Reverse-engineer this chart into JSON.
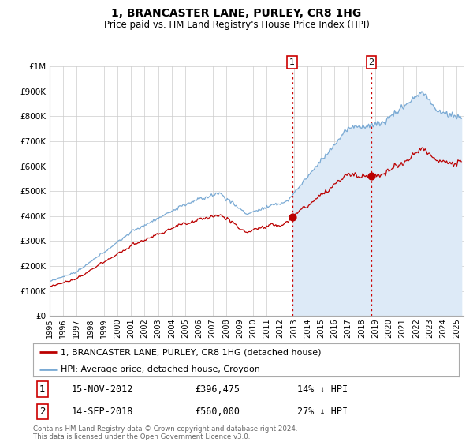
{
  "title": "1, BRANCASTER LANE, PURLEY, CR8 1HG",
  "subtitle": "Price paid vs. HM Land Registry's House Price Index (HPI)",
  "ylim": [
    0,
    1000000
  ],
  "yticks": [
    0,
    100000,
    200000,
    300000,
    400000,
    500000,
    600000,
    700000,
    800000,
    900000,
    1000000
  ],
  "ytick_labels": [
    "£0",
    "£100K",
    "£200K",
    "£300K",
    "£400K",
    "£500K",
    "£600K",
    "£700K",
    "£800K",
    "£900K",
    "£1M"
  ],
  "xlim_start": 1995.0,
  "xlim_end": 2025.5,
  "xtick_years": [
    1995,
    1996,
    1997,
    1998,
    1999,
    2000,
    2001,
    2002,
    2003,
    2004,
    2005,
    2006,
    2007,
    2008,
    2009,
    2010,
    2011,
    2012,
    2013,
    2014,
    2015,
    2016,
    2017,
    2018,
    2019,
    2020,
    2021,
    2022,
    2023,
    2024,
    2025
  ],
  "sale1_x": 2012.88,
  "sale1_y": 396475,
  "sale2_x": 2018.71,
  "sale2_y": 560000,
  "property_line_color": "#bb0000",
  "hpi_line_color": "#7aaad4",
  "hpi_fill_color": "#ddeaf7",
  "dotted_line_color": "#cc0000",
  "background_color": "#ffffff",
  "grid_color": "#cccccc",
  "legend_label_property": "1, BRANCASTER LANE, PURLEY, CR8 1HG (detached house)",
  "legend_label_hpi": "HPI: Average price, detached house, Croydon",
  "annotation1_date": "15-NOV-2012",
  "annotation1_price": "£396,475",
  "annotation1_hpi": "14% ↓ HPI",
  "annotation2_date": "14-SEP-2018",
  "annotation2_price": "£560,000",
  "annotation2_hpi": "27% ↓ HPI",
  "footer1": "Contains HM Land Registry data © Crown copyright and database right 2024.",
  "footer2": "This data is licensed under the Open Government Licence v3.0."
}
